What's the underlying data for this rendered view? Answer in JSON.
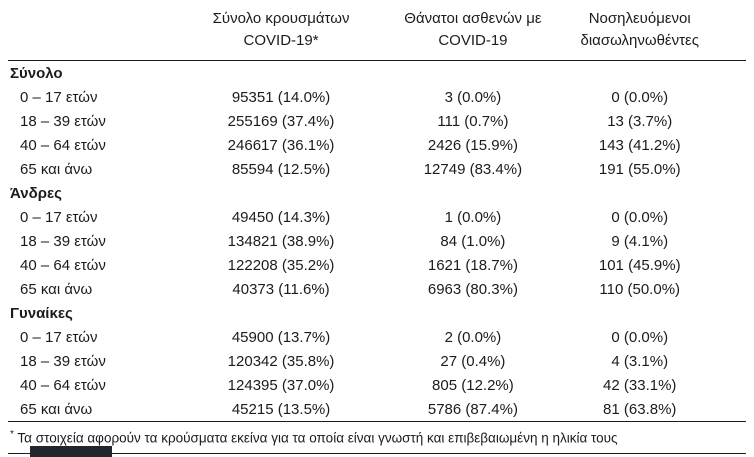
{
  "page": {
    "background": "#ffffff",
    "text_color": "#1b1b20",
    "rule_color": "#1a1a1a",
    "band_color": "#22252c"
  },
  "table": {
    "columns": [
      {
        "line1": "Σύνολο κρουσμάτων",
        "line2": "COVID-19*"
      },
      {
        "line1": "Θάνατοι ασθενών με",
        "line2": "COVID-19"
      },
      {
        "line1": "Νοσηλευόμενοι",
        "line2": "διασωληνωθέντες"
      }
    ],
    "sections": [
      {
        "label": "Σύνολο",
        "rows": [
          {
            "label": "0 – 17 ετών",
            "cases": "95351 (14.0%)",
            "deaths": "3 (0.0%)",
            "intubated": "0 (0.0%)"
          },
          {
            "label": "18 – 39 ετών",
            "cases": "255169 (37.4%)",
            "deaths": "111 (0.7%)",
            "intubated": "13 (3.7%)"
          },
          {
            "label": "40 – 64 ετών",
            "cases": "246617 (36.1%)",
            "deaths": "2426 (15.9%)",
            "intubated": "143 (41.2%)"
          },
          {
            "label": "65 και άνω",
            "cases": "85594 (12.5%)",
            "deaths": "12749 (83.4%)",
            "intubated": "191 (55.0%)"
          }
        ]
      },
      {
        "label": "Άνδρες",
        "rows": [
          {
            "label": "0 – 17 ετών",
            "cases": "49450 (14.3%)",
            "deaths": "1 (0.0%)",
            "intubated": "0 (0.0%)"
          },
          {
            "label": "18 – 39 ετών",
            "cases": "134821 (38.9%)",
            "deaths": "84 (1.0%)",
            "intubated": "9 (4.1%)"
          },
          {
            "label": "40 – 64 ετών",
            "cases": "122208 (35.2%)",
            "deaths": "1621 (18.7%)",
            "intubated": "101 (45.9%)"
          },
          {
            "label": "65 και άνω",
            "cases": "40373 (11.6%)",
            "deaths": "6963 (80.3%)",
            "intubated": "110 (50.0%)"
          }
        ]
      },
      {
        "label": "Γυναίκες",
        "rows": [
          {
            "label": "0 – 17 ετών",
            "cases": "45900 (13.7%)",
            "deaths": "2 (0.0%)",
            "intubated": "0 (0.0%)"
          },
          {
            "label": "18 – 39 ετών",
            "cases": "120342 (35.8%)",
            "deaths": "27 (0.4%)",
            "intubated": "4 (3.1%)"
          },
          {
            "label": "40 – 64 ετών",
            "cases": "124395 (37.0%)",
            "deaths": "805 (12.2%)",
            "intubated": "42 (33.1%)"
          },
          {
            "label": "65 και άνω",
            "cases": "45215 (13.5%)",
            "deaths": "5786 (87.4%)",
            "intubated": "81 (63.8%)"
          }
        ]
      }
    ],
    "footnote_marker": "*",
    "footnote_text": "Τα στοιχεία αφορούν τα κρούσματα εκείνα για τα οποία είναι γνωστή και επιβεβαιωμένη η ηλικία τους"
  }
}
